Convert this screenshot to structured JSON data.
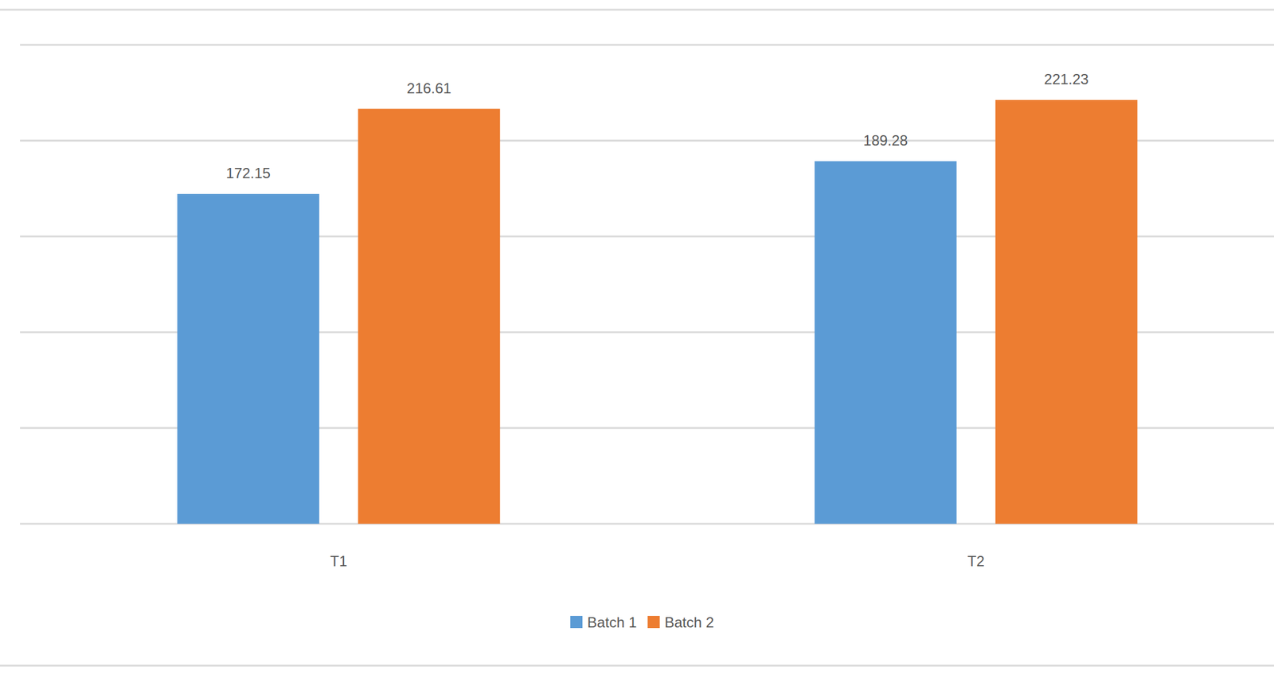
{
  "chart_data": {
    "type": "bar",
    "categories": [
      "T1",
      "T2"
    ],
    "series": [
      {
        "name": "Batch 1",
        "color": "#5b9bd5",
        "values": [
          172.15,
          189.28
        ]
      },
      {
        "name": "Batch 2",
        "color": "#ed7d31",
        "values": [
          216.61,
          221.23
        ]
      }
    ],
    "ylim": [
      0,
      250
    ],
    "yticks": [
      0,
      50,
      100,
      150,
      200,
      250
    ],
    "grid": true,
    "data_labels": true,
    "tick_labels": "x",
    "legend": "bottom"
  }
}
